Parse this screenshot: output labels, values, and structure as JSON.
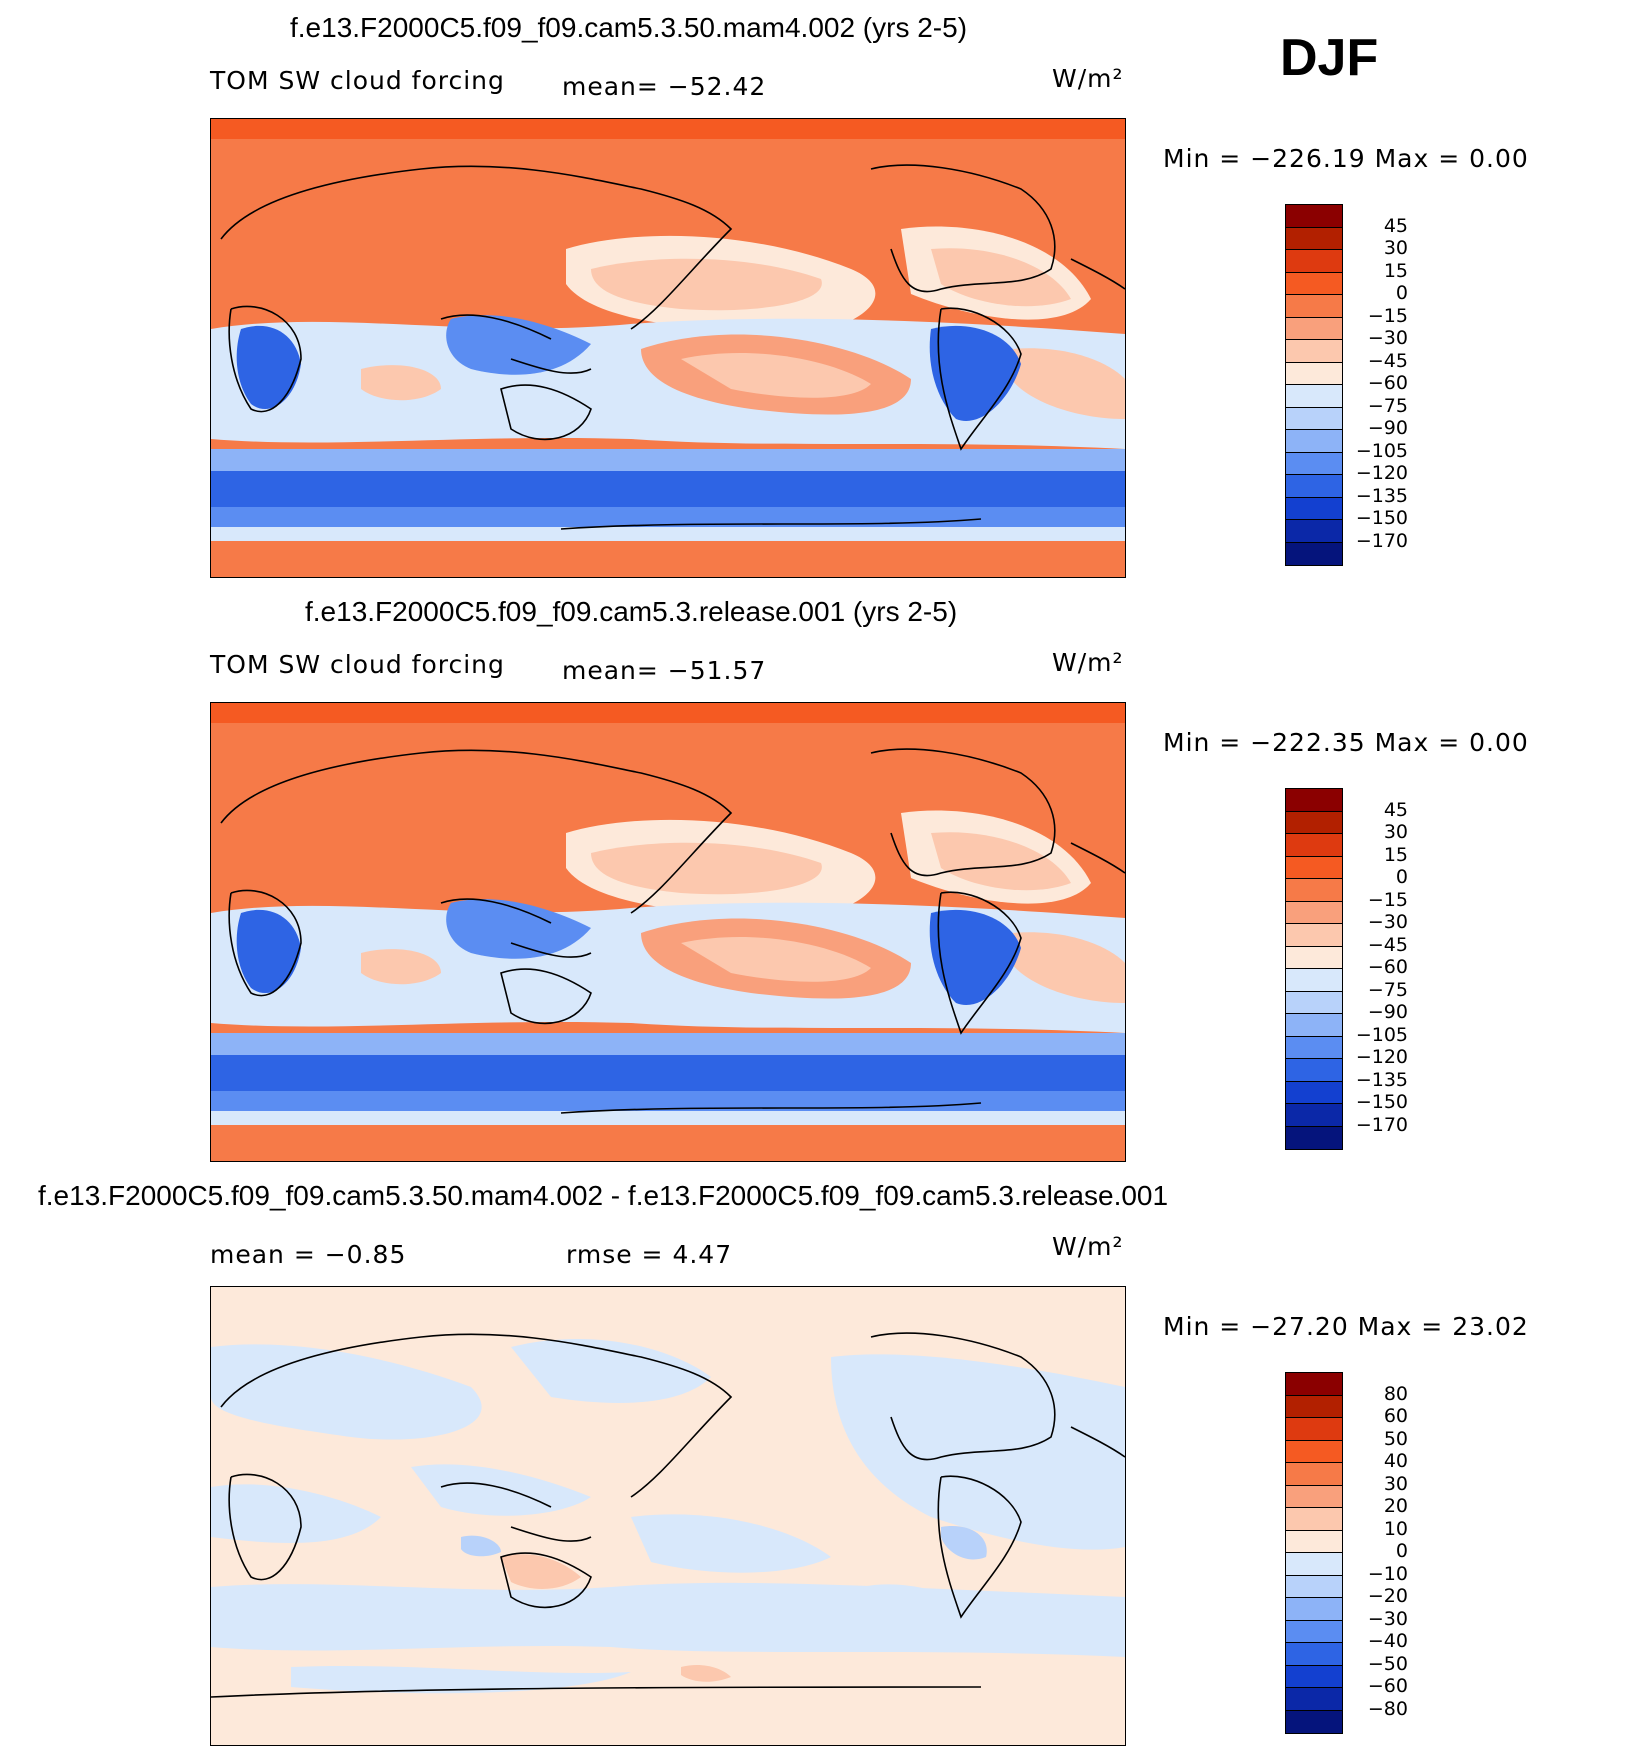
{
  "season": "DJF",
  "panels": [
    {
      "title": "f.e13.F2000C5.f09_f09.cam5.3.50.mam4.002 (yrs 2-5)",
      "variable": "TOM SW cloud forcing",
      "stat1": "mean= −52.42",
      "stat2": "",
      "units": "W/m²",
      "minmax": "Min = −226.19 Max =    0.00",
      "palette": "abs",
      "levels": [
        "45",
        "30",
        "15",
        "0",
        "−15",
        "−30",
        "−45",
        "−60",
        "−75",
        "−90",
        "−105",
        "−120",
        "−135",
        "−150",
        "−170"
      ]
    },
    {
      "title": "f.e13.F2000C5.f09_f09.cam5.3.release.001 (yrs 2-5)",
      "variable": "TOM SW cloud forcing",
      "stat1": "mean= −51.57",
      "stat2": "",
      "units": "W/m²",
      "minmax": "Min = −222.35 Max =    0.00",
      "palette": "abs",
      "levels": [
        "45",
        "30",
        "15",
        "0",
        "−15",
        "−30",
        "−45",
        "−60",
        "−75",
        "−90",
        "−105",
        "−120",
        "−135",
        "−150",
        "−170"
      ]
    },
    {
      "title": "f.e13.F2000C5.f09_f09.cam5.3.50.mam4.002 - f.e13.F2000C5.f09_f09.cam5.3.release.001",
      "variable": "",
      "stat1": "mean =   −0.85",
      "stat2": "rmse =    4.47",
      "units": "W/m²",
      "minmax": "Min = −27.20 Max =  23.02",
      "palette": "diff",
      "levels": [
        "80",
        "60",
        "50",
        "40",
        "30",
        "20",
        "10",
        "0",
        "−10",
        "−20",
        "−30",
        "−40",
        "−50",
        "−60",
        "−80"
      ]
    }
  ],
  "colors": {
    "scale": [
      "#8b0000",
      "#b22000",
      "#de3a10",
      "#f55a22",
      "#f67a48",
      "#f9a07c",
      "#fcc8ae",
      "#fde9da",
      "#d8e8fb",
      "#b8d2fa",
      "#8db3f7",
      "#5b8df2",
      "#2e64e4",
      "#1340d0",
      "#0b28a8",
      "#05147c"
    ],
    "diff_scale": [
      "#8b0000",
      "#b22000",
      "#de3a10",
      "#f55a22",
      "#f67a48",
      "#f9a07c",
      "#fcc8ae",
      "#fde9da",
      "#d8e8fb",
      "#b8d2fa",
      "#8db3f7",
      "#5b8df2",
      "#2e64e4",
      "#1340d0",
      "#0b28a8",
      "#05147c"
    ]
  }
}
